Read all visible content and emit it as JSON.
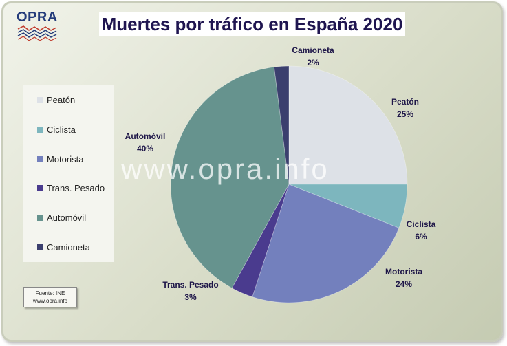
{
  "logo": {
    "text": "OPRA"
  },
  "chart_data": {
    "type": "pie",
    "title": "Muertes por tráfico en España 2020",
    "slices": [
      {
        "label": "Peatón",
        "percent_label": "25%",
        "value": 25,
        "color": "#dde1e7"
      },
      {
        "label": "Ciclista",
        "percent_label": "6%",
        "value": 6,
        "color": "#7db6be"
      },
      {
        "label": "Motorista",
        "percent_label": "24%",
        "value": 24,
        "color": "#7380bd"
      },
      {
        "label": "Trans. Pesado",
        "percent_label": "3%",
        "value": 3,
        "color": "#4a3b8e"
      },
      {
        "label": "Automóvil",
        "percent_label": "40%",
        "value": 40,
        "color": "#66938e"
      },
      {
        "label": "Camioneta",
        "percent_label": "2%",
        "value": 2,
        "color": "#3b3f6e"
      }
    ],
    "legend_position": "left"
  },
  "source": {
    "line1": "Fuente: INE",
    "line2": "www.opra.info"
  },
  "watermark": "www.opra.info"
}
